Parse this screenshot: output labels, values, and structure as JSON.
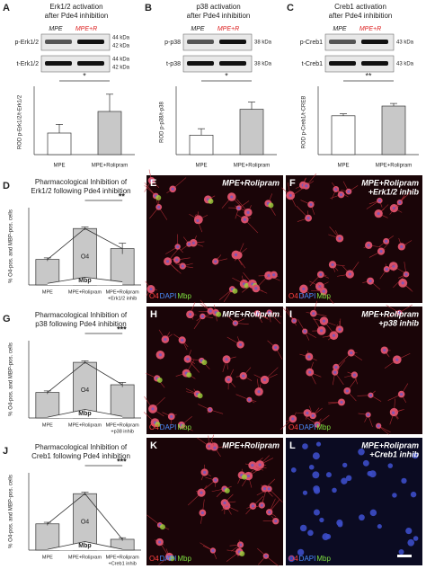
{
  "chart_data": [
    {
      "type": "bar",
      "panel": "A",
      "title": [
        "Erk1/2 activation",
        "after Pde4 inhibition"
      ],
      "y_label": "ROD p-Erk1/2/t-Erk1/2",
      "categories": [
        "MPE",
        "MPE+Rolipram"
      ],
      "values": [
        0.5,
        1.0
      ],
      "errors": [
        0.2,
        0.4
      ],
      "significance": "*",
      "color": [
        "#ffffff",
        "#c8c8c8"
      ],
      "ylim": [
        0,
        1.5
      ]
    },
    {
      "type": "bar",
      "panel": "B",
      "title": [
        "p38 activation",
        "after Pde4 inhibition"
      ],
      "y_label": "ROD p-p38/t-p38",
      "categories": [
        "MPE",
        "MPE+Rolipram"
      ],
      "values": [
        1.2,
        2.8
      ],
      "errors": [
        0.4,
        0.45
      ],
      "significance": "*",
      "color": [
        "#ffffff",
        "#c8c8c8"
      ],
      "ylim": [
        0,
        4
      ]
    },
    {
      "type": "bar",
      "panel": "C",
      "title": [
        "Creb1 activation",
        "after Pde4 inhibition"
      ],
      "y_label": "ROD p-Creb1/t-CREB",
      "categories": [
        "MPE",
        "MPE+Rolipram"
      ],
      "values": [
        0.6,
        0.75
      ],
      "errors": [
        0.03,
        0.04
      ],
      "significance": "**",
      "color": [
        "#ffffff",
        "#c8c8c8"
      ],
      "ylim": [
        0,
        1
      ]
    },
    {
      "type": "overlay",
      "panel": "D",
      "title": [
        "Pharmacological Inhibition of",
        "Erk1/2 following Pde4 inhibition"
      ],
      "y_label": "% O4-pos. and MBP-pos. cells",
      "categories": [
        [
          "MPE"
        ],
        [
          "MPE+Rolipram"
        ],
        [
          "MPE+Rolipram",
          "+Erk1/2 inhib"
        ]
      ],
      "significance": "**",
      "series": [
        {
          "name": "O4",
          "color": "#c8c8c8",
          "values": [
            33,
            73,
            47
          ],
          "errors": [
            2,
            2,
            7
          ]
        },
        {
          "name": "Mbp",
          "color": "#ffffff",
          "values": [
            2,
            10,
            4
          ]
        }
      ],
      "ylim": [
        0,
        100
      ]
    },
    {
      "type": "overlay",
      "panel": "G",
      "title": [
        "Pharmacological Inhibition of",
        "p38 following Pde4 inhibition"
      ],
      "y_label": "% O4-pos. and MBP-pos. cells",
      "categories": [
        [
          "MPE"
        ],
        [
          "MPE+Rolipram"
        ],
        [
          "MPE+Rolipram",
          "+p38 inhib"
        ]
      ],
      "significance": "***",
      "series": [
        {
          "name": "O4",
          "color": "#c8c8c8",
          "values": [
            33,
            72,
            43
          ],
          "errors": [
            2,
            2,
            3
          ]
        },
        {
          "name": "Mbp",
          "color": "#ffffff",
          "values": [
            1,
            11,
            2
          ]
        }
      ],
      "ylim": [
        0,
        100
      ]
    },
    {
      "type": "overlay",
      "panel": "J",
      "title": [
        "Pharmacological Inhibition of",
        "Creb1 following Pde4 inhibition"
      ],
      "y_label": "% O4-pos. and MBP-pos. cells",
      "categories": [
        [
          "MPE"
        ],
        [
          "MPE+Rolipram"
        ],
        [
          "MPE+Rolipram",
          "+Creb1 inhib"
        ]
      ],
      "significance": "***",
      "series": [
        {
          "name": "O4",
          "color": "#c8c8c8",
          "values": [
            34,
            73,
            14
          ],
          "errors": [
            2,
            2,
            2
          ]
        },
        {
          "name": "Mbp",
          "color": "#ffffff",
          "values": [
            1,
            11,
            1
          ]
        }
      ],
      "ylim": [
        0,
        100
      ]
    }
  ],
  "blots": [
    {
      "lanes": [
        "MPE",
        "MPE+R"
      ],
      "rows": [
        {
          "name": "p-Erk1/2",
          "kda": [
            "44 kDa",
            "42 kDa"
          ]
        },
        {
          "name": "t-Erk1/2",
          "kda": [
            "44 kDa",
            "42 kDa"
          ]
        }
      ]
    },
    {
      "lanes": [
        "MPE",
        "MPE+R"
      ],
      "rows": [
        {
          "name": "p-p38",
          "kda": [
            "38 kDa"
          ]
        },
        {
          "name": "t-p38",
          "kda": [
            "38 kDa"
          ]
        }
      ]
    },
    {
      "lanes": [
        "MPE",
        "MPE+R"
      ],
      "rows": [
        {
          "name": "p-Creb1",
          "kda": [
            "43 kDa"
          ]
        },
        {
          "name": "t-Creb1",
          "kda": [
            "43 kDa"
          ]
        }
      ]
    }
  ],
  "images": [
    {
      "panel": "E",
      "caption": [
        "MPE+Rolipram"
      ],
      "stain": [
        "O4",
        "DAPI",
        "Mbp"
      ]
    },
    {
      "panel": "F",
      "caption": [
        "MPE+Rolipram",
        "+Erk1/2 inhib"
      ],
      "stain": [
        "O4",
        "DAPI",
        "Mbp"
      ]
    },
    {
      "panel": "H",
      "caption": [
        "MPE+Rolipram"
      ],
      "stain": [
        "O4",
        "DAPI",
        "Mbp"
      ]
    },
    {
      "panel": "I",
      "caption": [
        "MPE+Rolipram",
        "+p38 inhib"
      ],
      "stain": [
        "O4",
        "DAPI",
        "Mbp"
      ]
    },
    {
      "panel": "K",
      "caption": [
        "MPE+Rolipram"
      ],
      "stain": [
        "O4",
        "DAPI",
        "Mbp"
      ]
    },
    {
      "panel": "L",
      "caption": [
        "MPE+Rolipram",
        "+Creb1 inhib"
      ],
      "stain": [
        "O4",
        "DAPI",
        "Mbp"
      ]
    }
  ]
}
